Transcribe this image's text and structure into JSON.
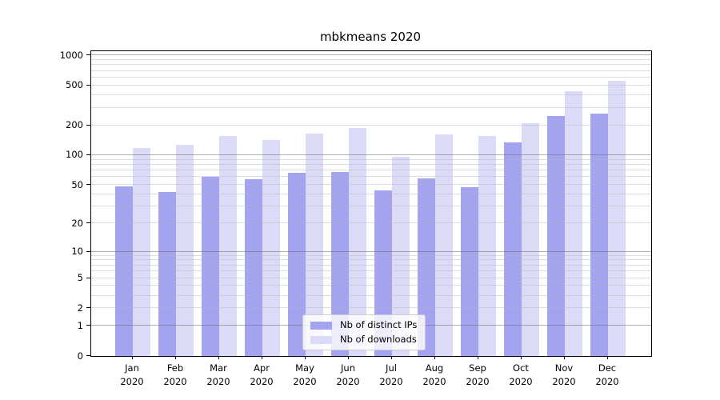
{
  "title": "mbkmeans 2020",
  "chart_data": {
    "type": "bar",
    "title": "mbkmeans 2020",
    "categories": [
      "Jan 2020",
      "Feb 2020",
      "Mar 2020",
      "Apr 2020",
      "May 2020",
      "Jun 2020",
      "Jul 2020",
      "Aug 2020",
      "Sep 2020",
      "Oct 2020",
      "Nov 2020",
      "Dec 2020"
    ],
    "series": [
      {
        "name": "Nb of distinct IPs",
        "color": "#a3a3ef",
        "values": [
          48,
          42,
          61,
          57,
          66,
          68,
          44,
          58,
          47,
          134,
          248,
          262
        ]
      },
      {
        "name": "Nb of downloads",
        "color": "#dbdbf8",
        "values": [
          118,
          127,
          155,
          142,
          165,
          186,
          97,
          162,
          157,
          210,
          439,
          555
        ]
      }
    ],
    "xlabel": "",
    "ylabel": "",
    "y_scale": "log1p",
    "y_ticks": [
      0,
      1,
      2,
      5,
      10,
      20,
      50,
      100,
      200,
      500,
      1000
    ],
    "y_minor_gridlines": [
      2,
      3,
      4,
      5,
      6,
      7,
      8,
      9,
      20,
      30,
      40,
      50,
      60,
      70,
      80,
      90,
      200,
      300,
      400,
      500,
      600,
      700,
      800,
      900
    ],
    "y_major_gridlines": [
      1,
      10,
      100,
      1000
    ],
    "ylim": [
      0,
      1100
    ],
    "grid": "horizontal major+minor, drawn over bars",
    "legend_position": "lower center-left inside plot",
    "colors": {
      "grid_major": "rgba(110,110,110,0.55)",
      "grid_minor": "rgba(180,180,195,0.45)",
      "spine": "#000000",
      "background": "#ffffff",
      "text": "#000000"
    }
  }
}
